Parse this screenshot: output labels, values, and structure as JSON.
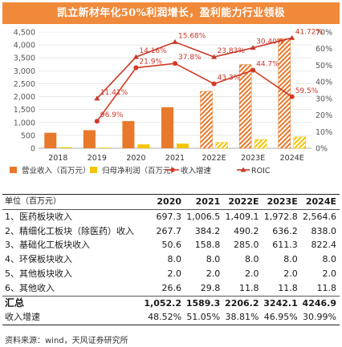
{
  "title": "凯立新材年化50%利润增长，盈利能力行业领极",
  "chart_data": {
    "type": "bar",
    "categories": [
      "2018",
      "2019",
      "2020",
      "2021",
      "2022E",
      "2023E",
      "2024E"
    ],
    "forecast_from": "2022E",
    "y_left": {
      "min": 0,
      "max": 4500,
      "ticks": [
        0,
        500,
        1000,
        1500,
        2000,
        2500,
        3000,
        3500,
        4000,
        4500
      ]
    },
    "y_right": {
      "min": 0,
      "max": 70,
      "ticks": [
        0,
        10,
        20,
        30,
        40,
        50,
        60,
        70
      ],
      "suffix": "%"
    },
    "series": [
      {
        "name": "营业收入（百万元）",
        "type": "bar",
        "axis": "left",
        "color": "#e8782a",
        "values": [
          600,
          700,
          1052,
          1589,
          2206,
          3242,
          4247
        ]
      },
      {
        "name": "归母净利润（百万元）",
        "type": "bar",
        "axis": "left",
        "color": "#f5c400",
        "values": [
          40,
          25,
          150,
          180,
          230,
          340,
          440
        ]
      },
      {
        "name": "收入增速",
        "type": "line",
        "axis": "right",
        "color": "#d23a26",
        "values": [
          null,
          16.3,
          48.5,
          51.1,
          38.8,
          47.0,
          31.0
        ]
      },
      {
        "name": "ROIC",
        "type": "line",
        "axis": "right",
        "color": "#c8372a",
        "values": [
          null,
          30.0,
          55.0,
          64.0,
          55.0,
          60.5,
          66.5
        ]
      }
    ],
    "annotations": [
      {
        "text": "96.9%",
        "x": "2019",
        "y": 16.3
      },
      {
        "text": "11.41%",
        "x": "2019",
        "y": 30.0
      },
      {
        "text": "14.16%",
        "x": "2020",
        "y": 55.0
      },
      {
        "text": "21.9%",
        "x": "2020",
        "y": 48.5
      },
      {
        "text": "15.68%",
        "x": "2021",
        "y": 64.0
      },
      {
        "text": "37.8%",
        "x": "2021",
        "y": 51.1
      },
      {
        "text": "23.83%",
        "x": "2022E",
        "y": 55.0
      },
      {
        "text": "43.3%",
        "x": "2022E",
        "y": 38.8
      },
      {
        "text": "30.40%",
        "x": "2023E",
        "y": 60.5
      },
      {
        "text": "44.7%",
        "x": "2023E",
        "y": 47.0
      },
      {
        "text": "41.72%",
        "x": "2024E",
        "y": 66.5
      },
      {
        "text": "59.5%",
        "x": "2024E",
        "y": 31.0
      }
    ]
  },
  "table": {
    "unit_label": "单位（百万元）",
    "years": [
      "2020",
      "2021",
      "2022E",
      "2023E",
      "2024E"
    ],
    "rows": [
      {
        "label": "1、医药板块收入",
        "values": [
          "697.3",
          "1,006.5",
          "1,409.1",
          "1,972.8",
          "2,564.6"
        ]
      },
      {
        "label": "2、精细化工板块（除医药）收入",
        "values": [
          "267.7",
          "384.2",
          "490.2",
          "636.2",
          "838.0"
        ]
      },
      {
        "label": "3、基础化工板块收入",
        "values": [
          "50.6",
          "158.8",
          "285.0",
          "611.3",
          "822.4"
        ]
      },
      {
        "label": "4、环保板块收入",
        "values": [
          "8.0",
          "8.0",
          "8.0",
          "8.0",
          "8.0"
        ]
      },
      {
        "label": "5、其他板块收入",
        "values": [
          "2.0",
          "2.0",
          "2.0",
          "2.0",
          "2.0"
        ]
      },
      {
        "label": "6、其他收入",
        "values": [
          "26.6",
          "29.8",
          "11.8",
          "11.8",
          "11.8"
        ]
      }
    ],
    "total": {
      "label": "汇总",
      "values": [
        "1,052.2",
        "1589.3",
        "2206.2",
        "3242.1",
        "4246.9"
      ]
    },
    "growth": {
      "label": "收入增速",
      "values": [
        "48.52%",
        "51.05%",
        "38.81%",
        "46.95%",
        "30.99%"
      ]
    }
  },
  "source": "资料来源：wind，天风证券研究所"
}
